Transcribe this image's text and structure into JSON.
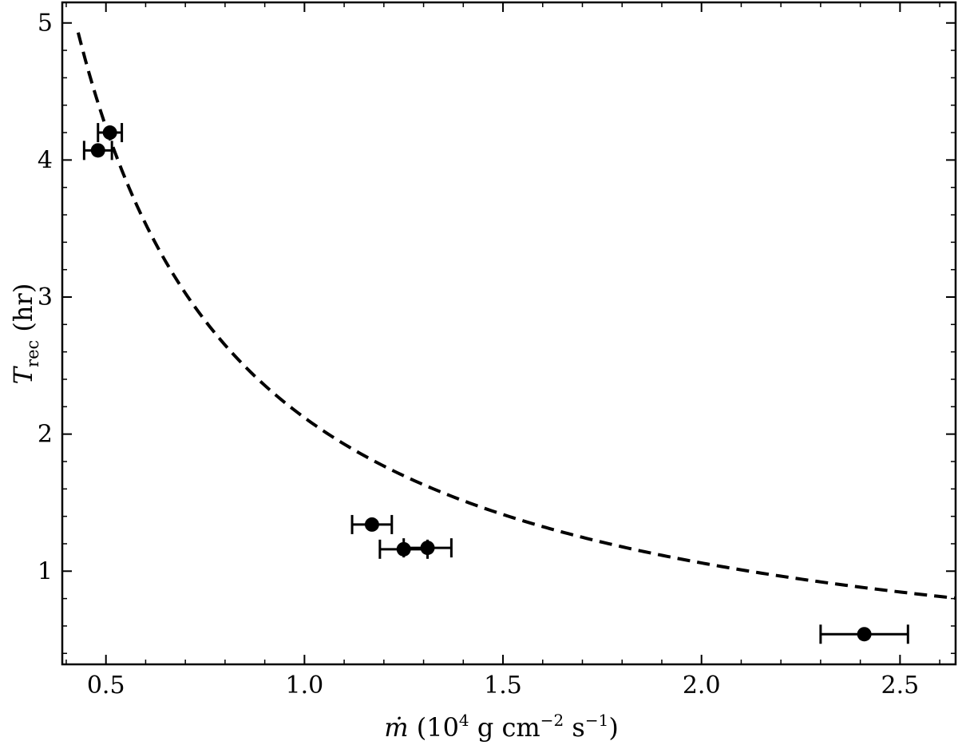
{
  "chart_data": {
    "type": "scatter",
    "title": "",
    "xlabel": {
      "symbol": "ṁ",
      "text": " (10",
      "exp1": "4",
      "mid": " g cm",
      "exp2": "−2",
      "mid2": " s",
      "exp3": "−1",
      "tail": ")"
    },
    "ylabel": {
      "symbol": "T",
      "subscript": "rec",
      "tail": " (hr)"
    },
    "xlim": [
      0.39,
      2.64
    ],
    "ylim": [
      0.32,
      5.15
    ],
    "xticks": [
      0.5,
      1.0,
      1.5,
      2.0,
      2.5
    ],
    "xtick_labels": [
      "0.5",
      "1.0",
      "1.5",
      "2.0",
      "2.5"
    ],
    "yticks": [
      1,
      2,
      3,
      4,
      5
    ],
    "ytick_labels": [
      "1",
      "2",
      "3",
      "4",
      "5"
    ],
    "grid": false,
    "series": [
      {
        "kind": "points_with_xerr",
        "color": "#000000",
        "points": [
          {
            "x": 0.48,
            "y": 4.07,
            "xerr": 0.035
          },
          {
            "x": 0.51,
            "y": 4.2,
            "xerr": 0.03
          },
          {
            "x": 1.17,
            "y": 1.34,
            "xerr": 0.05
          },
          {
            "x": 1.25,
            "y": 1.16,
            "xerr": 0.06
          },
          {
            "x": 1.31,
            "y": 1.17,
            "xerr": 0.06
          },
          {
            "x": 2.41,
            "y": 0.54,
            "xerr": 0.11
          }
        ]
      },
      {
        "kind": "fit_line",
        "style": "dashed",
        "color": "#000000",
        "model": "y = a / x",
        "a": 2.12,
        "x_range": [
          0.43,
          2.64
        ]
      }
    ]
  }
}
